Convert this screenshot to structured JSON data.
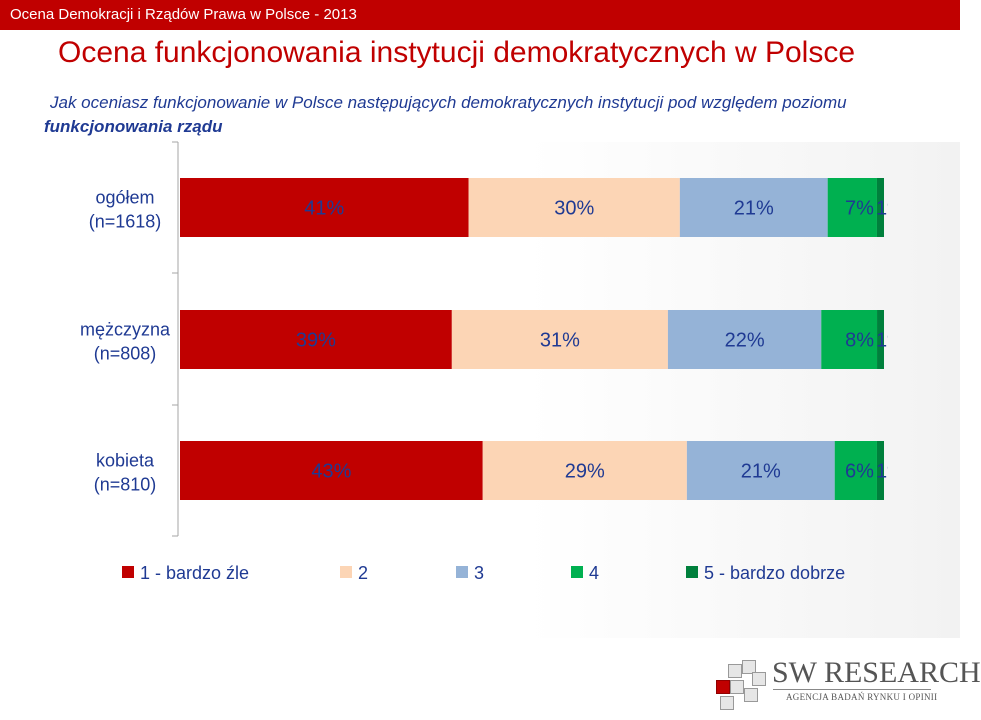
{
  "header": {
    "bar_title": "Ocena Demokracji i Rządów Prawa w Polsce - 2013"
  },
  "title": "Ocena funkcjonowania instytucji demokratycznych w Polsce",
  "subtitle": {
    "line1": "Jak oceniasz funkcjonowanie w Polsce następujących demokratycznych instytucji pod względem poziomu",
    "line2": "funkcjonowania rządu"
  },
  "colors": {
    "accent": "#c00000",
    "series": [
      "#c00000",
      "#fcd5b5",
      "#95b3d7",
      "#00b050",
      "#00803c"
    ]
  },
  "chart_data": {
    "type": "bar",
    "orientation": "horizontal",
    "stacked": true,
    "percent_scale": true,
    "categories": [
      {
        "line1": "ogółem",
        "line2": "(n=1618)"
      },
      {
        "line1": "mężczyzna",
        "line2": "(n=808)"
      },
      {
        "line1": "kobieta",
        "line2": "(n=810)"
      }
    ],
    "series": [
      {
        "name": "1 - bardzo źle",
        "values": [
          41,
          39,
          43
        ],
        "labels": [
          "41%",
          "39%",
          "43%"
        ]
      },
      {
        "name": "2",
        "values": [
          30,
          31,
          29
        ],
        "labels": [
          "30%",
          "31%",
          "29%"
        ]
      },
      {
        "name": "3",
        "values": [
          21,
          22,
          21
        ],
        "labels": [
          "21%",
          "22%",
          "21%"
        ]
      },
      {
        "name": "4",
        "values": [
          7,
          8,
          6
        ],
        "labels": [
          "7%",
          "8%",
          "6%"
        ]
      },
      {
        "name": "5 - bardzo dobrze",
        "values": [
          1,
          1,
          1
        ],
        "labels": [
          "1%",
          "1%",
          "1%"
        ]
      }
    ],
    "legend_position": "bottom",
    "grid": false
  },
  "logo": {
    "name": "SW RESEARCH",
    "tagline": "AGENCJA BADAŃ RYNKU I OPINII"
  }
}
